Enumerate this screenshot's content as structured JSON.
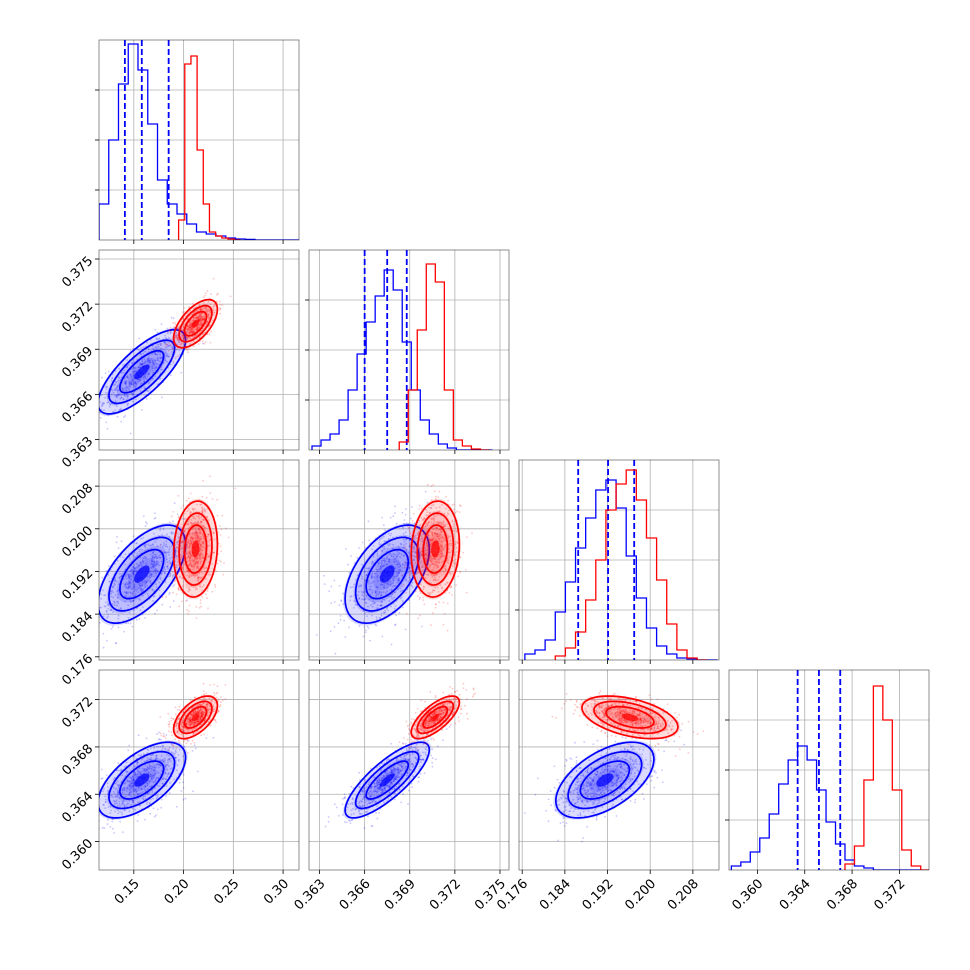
{
  "chart_data": {
    "type": "corner",
    "colors": {
      "series_a": "#0000ff",
      "series_b": "#ff0000",
      "grid": "#b0b0b0",
      "frame": "#000000"
    },
    "params": [
      {
        "ticks": [
          0.15,
          0.2,
          0.25,
          0.3
        ],
        "labels": [
          "0.15",
          "0.20",
          "0.25",
          "0.30"
        ],
        "range": [
          0.115,
          0.316
        ]
      },
      {
        "ticks": [
          0.363,
          0.366,
          0.369,
          0.372,
          0.375
        ],
        "labels": [
          "0.363",
          "0.366",
          "0.369",
          "0.372",
          "0.375"
        ],
        "range": [
          0.3623,
          0.3756
        ]
      },
      {
        "ticks": [
          0.176,
          0.184,
          0.192,
          0.2,
          0.208
        ],
        "labels": [
          "0.176",
          "0.184",
          "0.192",
          "0.200",
          "0.208"
        ],
        "range": [
          0.1754,
          0.2129
        ]
      },
      {
        "ticks": [
          0.36,
          0.364,
          0.368,
          0.372
        ],
        "labels": [
          "0.360",
          "0.364",
          "0.368",
          "0.372"
        ],
        "range": [
          0.3576,
          0.3745
        ]
      }
    ],
    "series": [
      {
        "name": "",
        "color": "#0000ff",
        "show_quantiles": true,
        "mean": [
          0.158,
          0.3675,
          0.1915,
          0.3652
        ],
        "sd": [
          0.022,
          0.0014,
          0.0046,
          0.0016
        ],
        "corr": [
          [
            1,
            0.75,
            0.6,
            0.6
          ],
          [
            0.75,
            1,
            0.5,
            0.8
          ],
          [
            0.6,
            0.5,
            1,
            0.55
          ],
          [
            0.6,
            0.8,
            0.55,
            1
          ]
        ],
        "quantiles": [
          [
            0.141,
            0.158,
            0.185
          ],
          [
            0.366,
            0.3675,
            0.3688
          ],
          [
            0.1865,
            0.1921,
            0.197
          ],
          [
            0.3634,
            0.3652,
            0.367
          ]
        ],
        "hist": [
          {
            "edges": [
              0.115,
              0.1248,
              0.1346,
              0.1444,
              0.1542,
              0.164,
              0.1738,
              0.1836,
              0.1934,
              0.2032,
              0.213,
              0.2228,
              0.2326,
              0.2424,
              0.2522,
              0.262,
              0.2718,
              0.2816,
              0.2914,
              0.3012,
              0.316
            ],
            "heights": [
              0.18,
              0.5,
              0.78,
              0.98,
              0.85,
              0.58,
              0.3,
              0.18,
              0.13,
              0.08,
              0.04,
              0.03,
              0.02,
              0.01,
              0.005,
              0.003,
              0,
              0,
              0,
              0
            ]
          },
          {
            "edges": [
              0.3625,
              0.3631,
              0.3637,
              0.3643,
              0.3649,
              0.3655,
              0.3661,
              0.3667,
              0.3673,
              0.3679,
              0.3685,
              0.3691,
              0.3697,
              0.3703,
              0.3709,
              0.3715,
              0.3721,
              0.3727,
              0.3733,
              0.3739,
              0.3745
            ],
            "heights": [
              0.02,
              0.05,
              0.08,
              0.15,
              0.3,
              0.48,
              0.64,
              0.77,
              0.9,
              0.8,
              0.54,
              0.3,
              0.15,
              0.08,
              0.03,
              0.01,
              0,
              0,
              0,
              0
            ]
          },
          {
            "edges": [
              0.1765,
              0.1784,
              0.1803,
              0.1822,
              0.1841,
              0.186,
              0.1879,
              0.1898,
              0.1917,
              0.1936,
              0.1955,
              0.1974,
              0.1993,
              0.2012,
              0.2031,
              0.205,
              0.2069,
              0.2088,
              0.2107,
              0.2126
            ],
            "heights": [
              0.03,
              0.05,
              0.1,
              0.24,
              0.39,
              0.56,
              0.71,
              0.85,
              0.9,
              0.76,
              0.52,
              0.31,
              0.16,
              0.07,
              0.03,
              0.01,
              0.005,
              0,
              0
            ]
          },
          {
            "edges": [
              0.3578,
              0.3586,
              0.3594,
              0.3602,
              0.361,
              0.3618,
              0.3626,
              0.3634,
              0.3642,
              0.365,
              0.3658,
              0.3666,
              0.3674,
              0.3682,
              0.369,
              0.3698,
              0.3706,
              0.3714,
              0.3722,
              0.373,
              0.3738
            ],
            "heights": [
              0.02,
              0.04,
              0.09,
              0.16,
              0.28,
              0.43,
              0.55,
              0.62,
              0.55,
              0.4,
              0.24,
              0.13,
              0.05,
              0.02,
              0.01,
              0,
              0,
              0,
              0,
              0
            ]
          }
        ]
      },
      {
        "name": "",
        "color": "#ff0000",
        "show_quantiles": false,
        "mean": [
          0.212,
          0.3707,
          0.1962,
          0.3705
        ],
        "sd": [
          0.011,
          0.0008,
          0.0045,
          0.0009
        ],
        "corr": [
          [
            1,
            0.6,
            0.1,
            0.55
          ],
          [
            0.6,
            1,
            0.1,
            0.7
          ],
          [
            0.1,
            0.1,
            1,
            -0.45
          ],
          [
            0.55,
            0.7,
            -0.45,
            1
          ]
        ],
        "quantiles": [],
        "hist": [
          {
            "edges": [
              0.195,
              0.2012,
              0.2074,
              0.2136,
              0.2198,
              0.226,
              0.2322,
              0.2384,
              0.2446,
              0.2508,
              0.257
            ],
            "heights": [
              0.1,
              0.88,
              0.92,
              0.45,
              0.18,
              0.04,
              0.02,
              0.01,
              0.005,
              0
            ]
          },
          {
            "edges": [
              0.3683,
              0.3689,
              0.3695,
              0.3701,
              0.3707,
              0.3713,
              0.3719,
              0.3725,
              0.3731,
              0.3737,
              0.3743
            ],
            "heights": [
              0.04,
              0.3,
              0.6,
              0.93,
              0.84,
              0.3,
              0.05,
              0.02,
              0.005,
              0
            ]
          },
          {
            "edges": [
              0.1822,
              0.1841,
              0.186,
              0.1879,
              0.1898,
              0.1917,
              0.1936,
              0.1955,
              0.1974,
              0.1993,
              0.2012,
              0.2031,
              0.205,
              0.2069,
              0.2088,
              0.2107
            ],
            "heights": [
              0.02,
              0.06,
              0.14,
              0.3,
              0.5,
              0.75,
              0.88,
              0.95,
              0.8,
              0.61,
              0.4,
              0.18,
              0.05,
              0.01,
              0
            ]
          },
          {
            "edges": [
              0.3674,
              0.3682,
              0.369,
              0.3698,
              0.3706,
              0.3714,
              0.3722,
              0.373,
              0.3738,
              0.3746
            ],
            "heights": [
              0.03,
              0.12,
              0.45,
              0.92,
              0.75,
              0.4,
              0.1,
              0.02,
              0
            ]
          }
        ]
      }
    ]
  }
}
